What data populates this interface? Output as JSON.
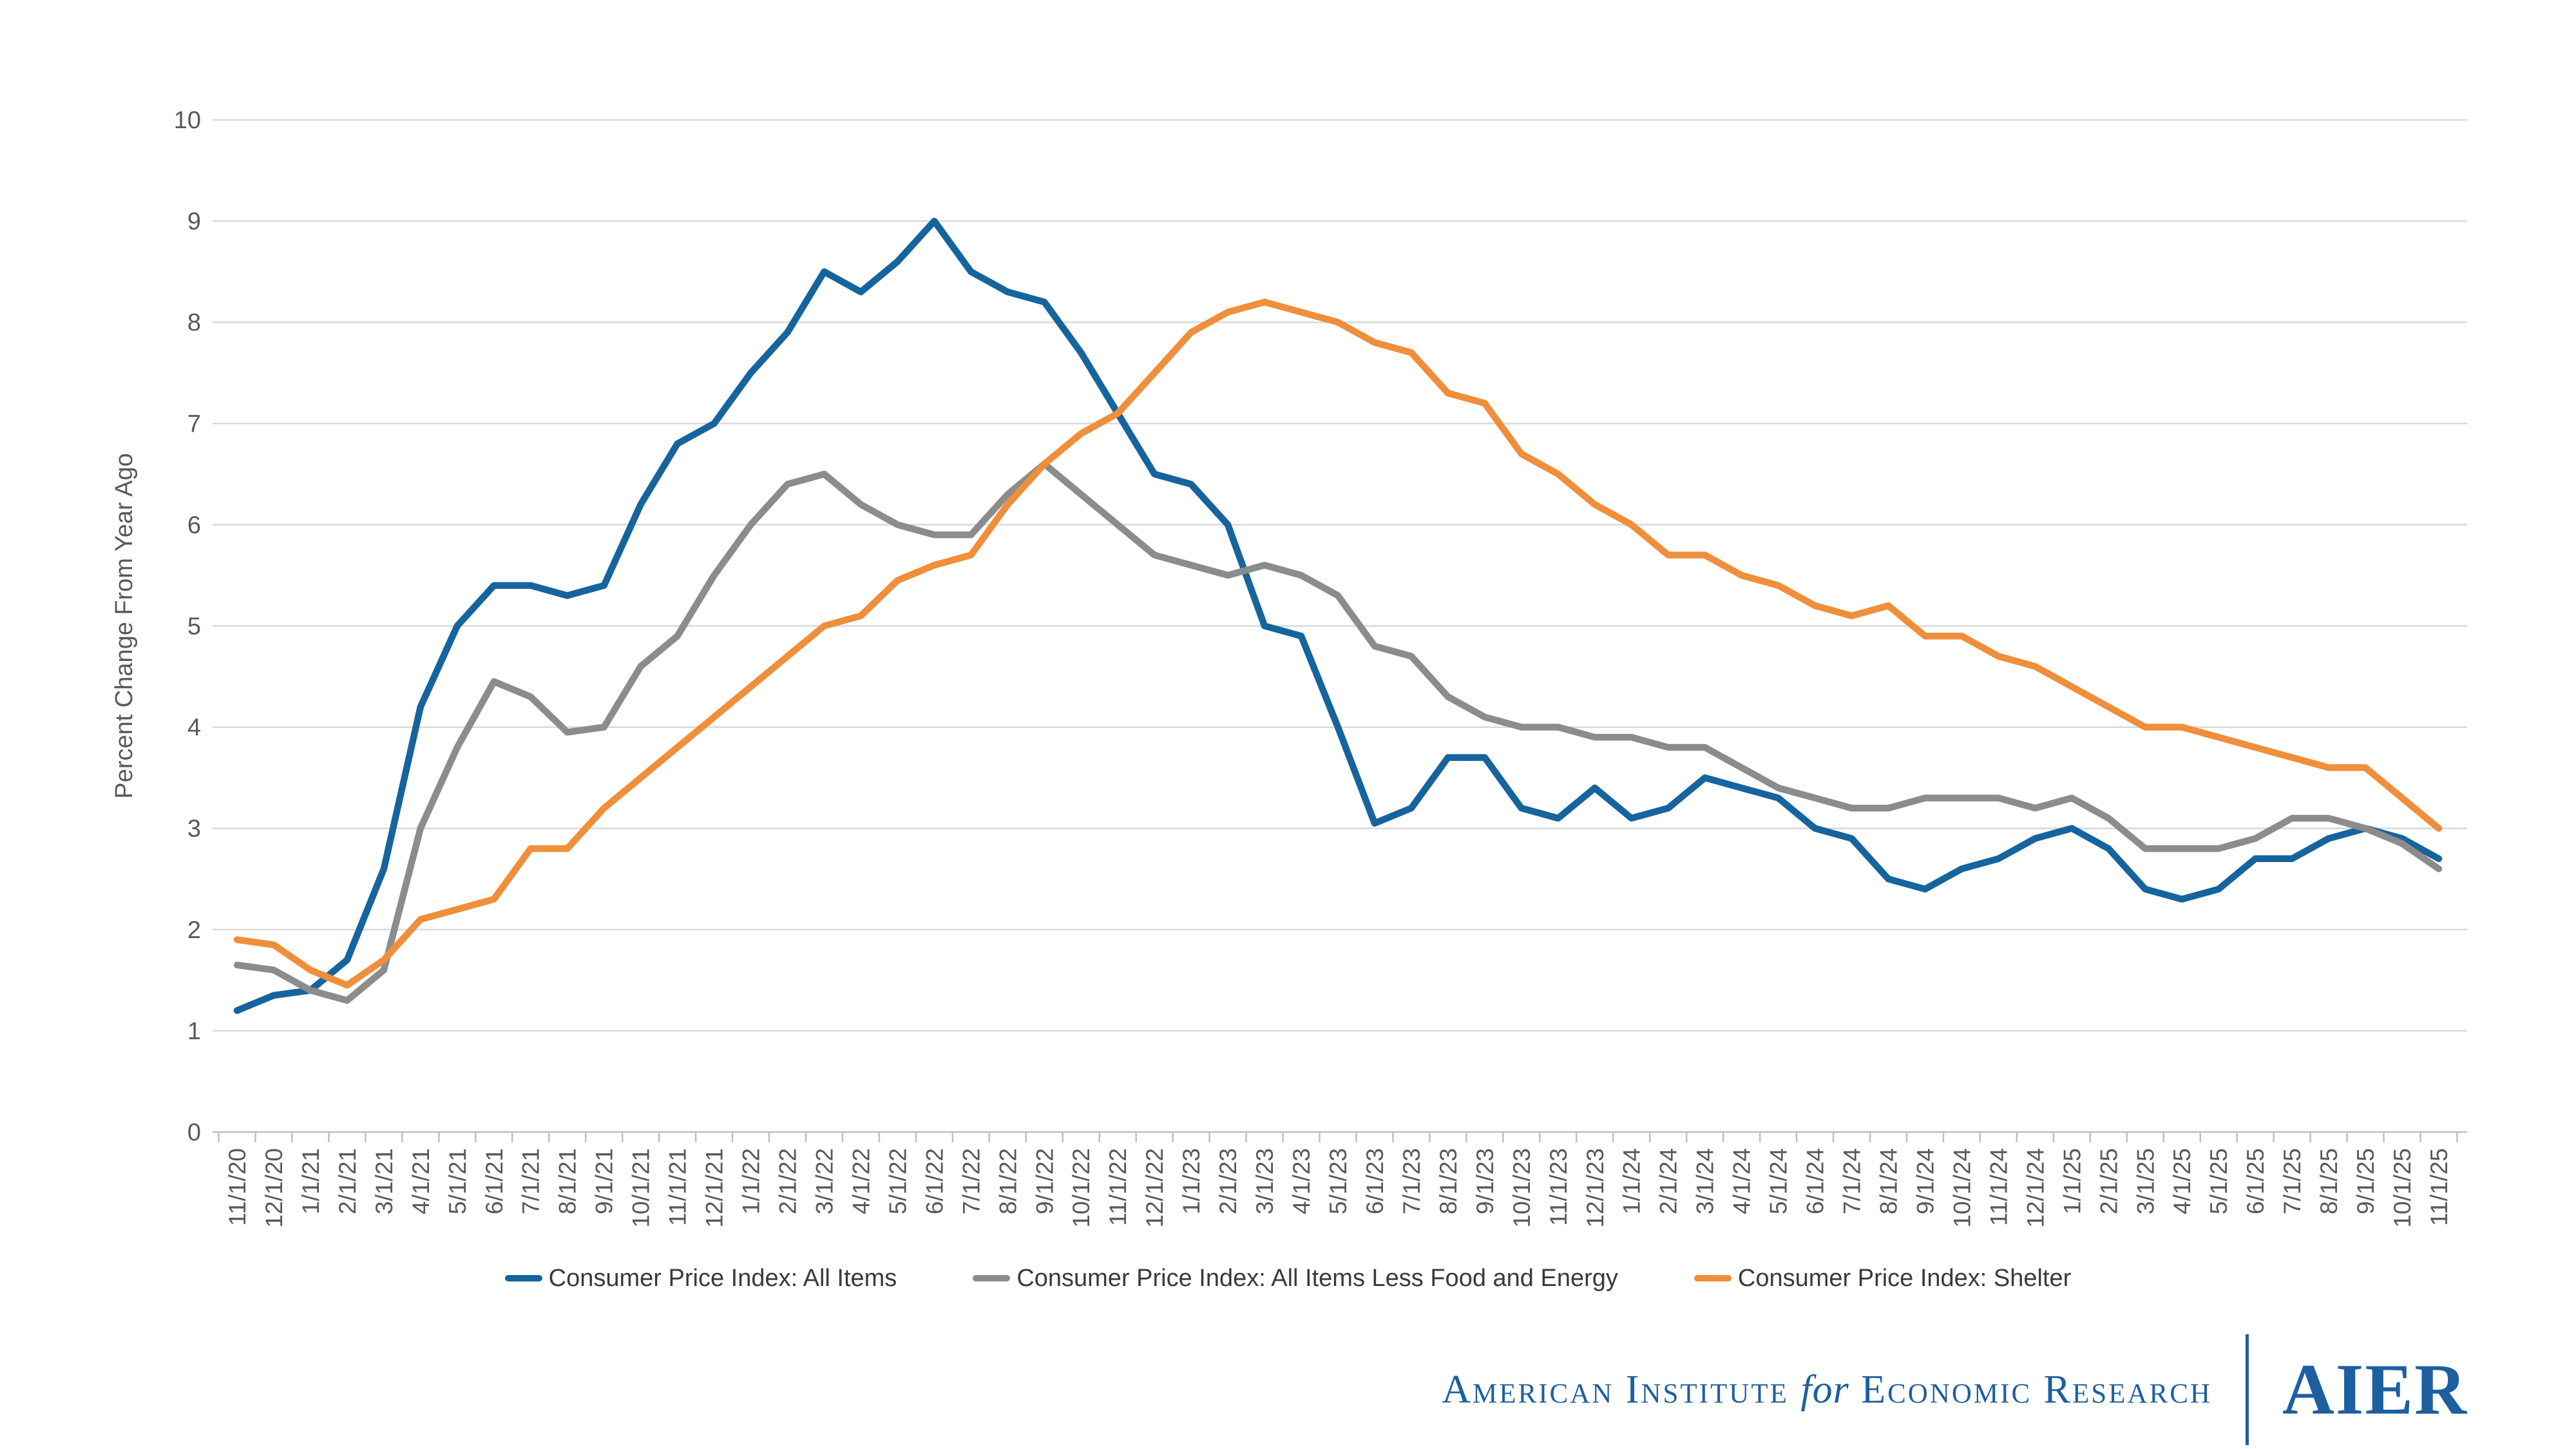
{
  "chart_data": {
    "type": "line",
    "title": "",
    "ylabel": "Percent Change From Year Ago",
    "xlabel": "",
    "ylim": [
      0,
      10
    ],
    "y_ticks": [
      0,
      1,
      2,
      3,
      4,
      5,
      6,
      7,
      8,
      9,
      10
    ],
    "grid": true,
    "legend_position": "bottom",
    "x_label_rotation": -90,
    "categories": [
      "11/1/20",
      "12/1/20",
      "1/1/21",
      "2/1/21",
      "3/1/21",
      "4/1/21",
      "5/1/21",
      "6/1/21",
      "7/1/21",
      "8/1/21",
      "9/1/21",
      "10/1/21",
      "11/1/21",
      "12/1/21",
      "1/1/22",
      "2/1/22",
      "3/1/22",
      "4/1/22",
      "5/1/22",
      "6/1/22",
      "7/1/22",
      "8/1/22",
      "9/1/22",
      "10/1/22",
      "11/1/22",
      "12/1/22",
      "1/1/23",
      "2/1/23",
      "3/1/23",
      "4/1/23",
      "5/1/23",
      "6/1/23",
      "7/1/23",
      "8/1/23",
      "9/1/23",
      "10/1/23",
      "11/1/23",
      "12/1/23",
      "1/1/24",
      "2/1/24",
      "3/1/24",
      "4/1/24",
      "5/1/24",
      "6/1/24",
      "7/1/24",
      "8/1/24",
      "9/1/24",
      "10/1/24",
      "11/1/24",
      "12/1/24",
      "1/1/25",
      "2/1/25",
      "3/1/25",
      "4/1/25",
      "5/1/25",
      "6/1/25",
      "7/1/25",
      "8/1/25",
      "9/1/25",
      "10/1/25",
      "11/1/25"
    ],
    "series": [
      {
        "name": "Consumer Price Index: All Items",
        "color": "#16649E",
        "values": [
          1.2,
          1.35,
          1.4,
          1.7,
          2.6,
          4.2,
          5.0,
          5.4,
          5.4,
          5.3,
          5.4,
          6.2,
          6.8,
          7.0,
          7.5,
          7.9,
          8.5,
          8.3,
          8.6,
          9.0,
          8.5,
          8.3,
          8.2,
          7.7,
          7.1,
          6.5,
          6.4,
          6.0,
          5.0,
          4.9,
          4.0,
          3.05,
          3.2,
          3.7,
          3.7,
          3.2,
          3.1,
          3.4,
          3.1,
          3.2,
          3.5,
          3.4,
          3.3,
          3.0,
          2.9,
          2.5,
          2.4,
          2.6,
          2.7,
          2.9,
          3.0,
          2.8,
          2.4,
          2.3,
          2.4,
          2.7,
          2.7,
          2.9,
          3.0,
          2.9,
          2.7
        ]
      },
      {
        "name": "Consumer Price Index: All Items Less Food and Energy",
        "color": "#8C8C8C",
        "values": [
          1.65,
          1.6,
          1.4,
          1.3,
          1.6,
          3.0,
          3.8,
          4.45,
          4.3,
          3.95,
          4.0,
          4.6,
          4.9,
          5.5,
          6.0,
          6.4,
          6.5,
          6.2,
          6.0,
          5.9,
          5.9,
          6.3,
          6.6,
          6.3,
          6.0,
          5.7,
          5.6,
          5.5,
          5.6,
          5.5,
          5.3,
          4.8,
          4.7,
          4.3,
          4.1,
          4.0,
          4.0,
          3.9,
          3.9,
          3.8,
          3.8,
          3.6,
          3.4,
          3.3,
          3.2,
          3.2,
          3.3,
          3.3,
          3.3,
          3.2,
          3.3,
          3.1,
          2.8,
          2.8,
          2.8,
          2.9,
          3.1,
          3.1,
          3.0,
          2.85,
          2.6
        ]
      },
      {
        "name": "Consumer Price Index: Shelter",
        "color": "#EF8F3B",
        "values": [
          1.9,
          1.85,
          1.6,
          1.45,
          1.7,
          2.1,
          2.2,
          2.3,
          2.8,
          2.8,
          3.2,
          3.5,
          3.8,
          4.1,
          4.4,
          4.7,
          5.0,
          5.1,
          5.45,
          5.6,
          5.7,
          6.2,
          6.6,
          6.9,
          7.1,
          7.5,
          7.9,
          8.1,
          8.2,
          8.1,
          8.0,
          7.8,
          7.7,
          7.3,
          7.2,
          6.7,
          6.5,
          6.2,
          6.0,
          5.7,
          5.7,
          5.5,
          5.4,
          5.2,
          5.1,
          5.2,
          4.9,
          4.9,
          4.7,
          4.6,
          4.4,
          4.2,
          4.0,
          4.0,
          3.9,
          3.8,
          3.7,
          3.6,
          3.6,
          3.3,
          3.0
        ]
      }
    ],
    "colors": {
      "gridline": "#D9D9D9",
      "axis_line": "#BFBFBF",
      "tick_text": "#595959"
    }
  },
  "footer": {
    "org_prefix": "American Institute",
    "org_for": "for",
    "org_suffix": "Economic Research",
    "logo_text": "AIER",
    "brand_color": "#1D5F9F"
  }
}
